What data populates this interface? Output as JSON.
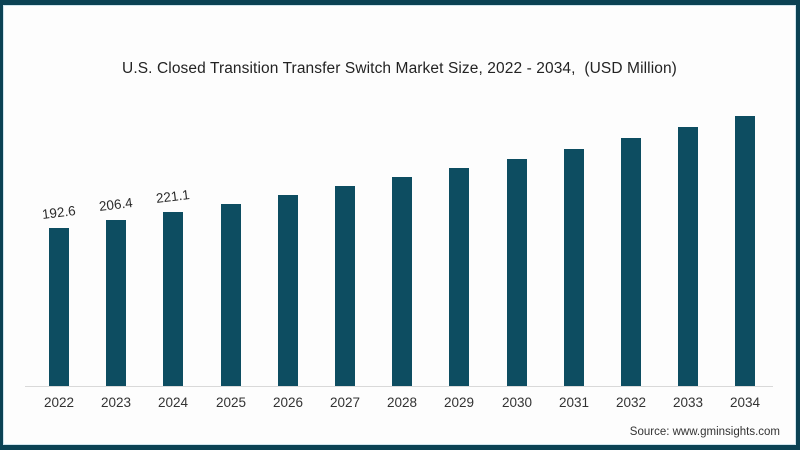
{
  "page": {
    "source_text": "Source: www.gminsights.com"
  },
  "colors": {
    "bar": "#0d4d61",
    "frame_border": "#0b4254",
    "frame_inner_line": "#cfe4ed",
    "title_text": "#232323",
    "axis_label_text": "#333333",
    "axis_line": "#d9d9d9",
    "background": "#fdfdfd"
  },
  "chart_data": {
    "type": "bar",
    "title": "U.S. Closed Transition Transfer Switch Market Size, 2022 - 2034,  (USD Million)",
    "unit": "USD Million",
    "categories": [
      "2022",
      "2023",
      "2024",
      "2025",
      "2026",
      "2027",
      "2028",
      "2029",
      "2030",
      "2031",
      "2032",
      "2033",
      "2034"
    ],
    "values": [
      192.6,
      206.4,
      221.1,
      234.8,
      251.3,
      267.4,
      282.1,
      298.9,
      315.5,
      333.3,
      352.3,
      371.2,
      392.1
    ],
    "data_labels_shown": [
      "192.6",
      "206.4",
      "221.1",
      null,
      null,
      null,
      null,
      null,
      null,
      null,
      null,
      null,
      null
    ],
    "xlabel": "",
    "ylabel": "",
    "ylim": [
      -90,
      420
    ],
    "grid": false,
    "legend": false,
    "bar_color": "#0d4d61",
    "source": "Source: www.gminsights.com"
  }
}
